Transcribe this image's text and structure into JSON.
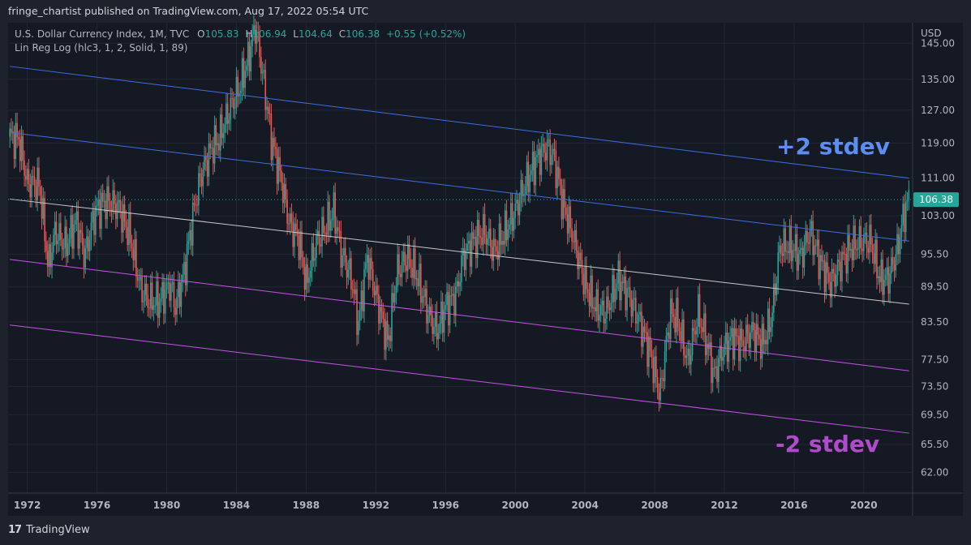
{
  "header": {
    "published": "fringe_chartist published on TradingView.com, Aug 17, 2022 05:54 UTC"
  },
  "legend": {
    "symbol": "U.S. Dollar Currency Index, 1M, TVC",
    "o_label": "O",
    "o": "105.83",
    "h_label": "H",
    "h": "106.94",
    "l_label": "L",
    "l": "104.64",
    "c_label": "C",
    "c": "106.38",
    "change": "+0.55 (+0.52%)",
    "indicator": "Lin Reg Log (hlc3, 1, 2, Solid, 1, 89)"
  },
  "footer": {
    "brand": "TradingView"
  },
  "colors": {
    "up": "#26a69a",
    "down": "#ef5350",
    "upper": "#3d6fe0",
    "lower": "#c653e6",
    "mid": "#c8c8c8",
    "last": "#26a69a"
  },
  "chart_data": {
    "type": "candlestick",
    "price_axis_label": "USD",
    "y_ticks": [
      "145.00",
      "135.00",
      "127.00",
      "119.00",
      "111.00",
      "103.00",
      "95.50",
      "89.50",
      "83.50",
      "77.50",
      "73.50",
      "69.50",
      "65.50",
      "62.00"
    ],
    "x_ticks": [
      "1972",
      "1976",
      "1980",
      "1984",
      "1988",
      "1992",
      "1996",
      "2000",
      "2004",
      "2008",
      "2012",
      "2016",
      "2020"
    ],
    "last_price": "106.38",
    "ylim": [
      59.5,
      151
    ],
    "xlim": [
      1970.9,
      2022.8
    ],
    "y_scale": "log",
    "annotations": [
      {
        "text": "+2 stdev",
        "color": "#5b8ef0"
      },
      {
        "text": "-2 stdev",
        "color": "#b04ccc"
      }
    ],
    "regression_channel": {
      "from_year": 1971.0,
      "to_year": 2022.6,
      "mid": [
        106.5,
        86.5
      ],
      "upper_2sd": [
        138.5,
        111.0
      ],
      "upper_1sd": [
        121.5,
        98.0
      ],
      "lower_1sd": [
        94.5,
        75.8
      ],
      "lower_2sd": [
        83.0,
        67.0
      ]
    },
    "series_path": [
      [
        1971.0,
        120.5
      ],
      [
        1971.5,
        120.0
      ],
      [
        1972.0,
        110
      ],
      [
        1972.7,
        109.5
      ],
      [
        1973.2,
        93
      ],
      [
        1973.6,
        100
      ],
      [
        1974.2,
        97
      ],
      [
        1974.8,
        102
      ],
      [
        1975.3,
        95
      ],
      [
        1975.9,
        104
      ],
      [
        1976.5,
        106
      ],
      [
        1977.2,
        105
      ],
      [
        1977.9,
        99
      ],
      [
        1978.5,
        89
      ],
      [
        1979.0,
        87
      ],
      [
        1979.6,
        87
      ],
      [
        1980.2,
        90
      ],
      [
        1980.5,
        86
      ],
      [
        1981.0,
        92
      ],
      [
        1981.6,
        105
      ],
      [
        1982.0,
        112
      ],
      [
        1982.6,
        118
      ],
      [
        1983.0,
        120
      ],
      [
        1983.6,
        127
      ],
      [
        1984.2,
        133
      ],
      [
        1984.7,
        141
      ],
      [
        1985.1,
        150
      ],
      [
        1985.6,
        133
      ],
      [
        1986.0,
        120
      ],
      [
        1986.6,
        110
      ],
      [
        1987.0,
        102
      ],
      [
        1987.6,
        98
      ],
      [
        1988.0,
        90
      ],
      [
        1988.6,
        98
      ],
      [
        1989.0,
        100
      ],
      [
        1989.6,
        104
      ],
      [
        1990.0,
        96
      ],
      [
        1990.6,
        91
      ],
      [
        1991.0,
        83
      ],
      [
        1991.5,
        95
      ],
      [
        1992.0,
        88
      ],
      [
        1992.7,
        80
      ],
      [
        1993.2,
        92
      ],
      [
        1993.8,
        95
      ],
      [
        1994.3,
        92
      ],
      [
        1995.0,
        85
      ],
      [
        1995.5,
        82
      ],
      [
        1996.0,
        86
      ],
      [
        1996.6,
        88
      ],
      [
        1997.0,
        95
      ],
      [
        1997.6,
        98
      ],
      [
        1998.2,
        100
      ],
      [
        1998.8,
        96
      ],
      [
        1999.3,
        99
      ],
      [
        2000.0,
        104
      ],
      [
        2000.6,
        110
      ],
      [
        2001.2,
        115
      ],
      [
        2001.8,
        118
      ],
      [
        2002.2,
        116
      ],
      [
        2002.7,
        106
      ],
      [
        2003.3,
        99
      ],
      [
        2004.0,
        90
      ],
      [
        2004.6,
        86
      ],
      [
        2005.2,
        85
      ],
      [
        2005.9,
        91
      ],
      [
        2006.5,
        88
      ],
      [
        2007.2,
        83
      ],
      [
        2007.8,
        78
      ],
      [
        2008.3,
        72
      ],
      [
        2008.9,
        85
      ],
      [
        2009.3,
        84
      ],
      [
        2009.9,
        77
      ],
      [
        2010.5,
        85
      ],
      [
        2011.0,
        80
      ],
      [
        2011.4,
        75
      ],
      [
        2011.9,
        79
      ],
      [
        2012.5,
        81
      ],
      [
        2013.0,
        80
      ],
      [
        2013.6,
        82
      ],
      [
        2014.2,
        80
      ],
      [
        2014.7,
        84
      ],
      [
        2015.2,
        97
      ],
      [
        2015.8,
        97
      ],
      [
        2016.4,
        95
      ],
      [
        2016.9,
        100
      ],
      [
        2017.5,
        94
      ],
      [
        2018.1,
        90
      ],
      [
        2018.7,
        94
      ],
      [
        2019.3,
        97
      ],
      [
        2019.9,
        98
      ],
      [
        2020.4,
        98
      ],
      [
        2020.9,
        91
      ],
      [
        2021.4,
        91
      ],
      [
        2021.9,
        96
      ],
      [
        2022.4,
        105
      ],
      [
        2022.6,
        106.38
      ]
    ]
  }
}
